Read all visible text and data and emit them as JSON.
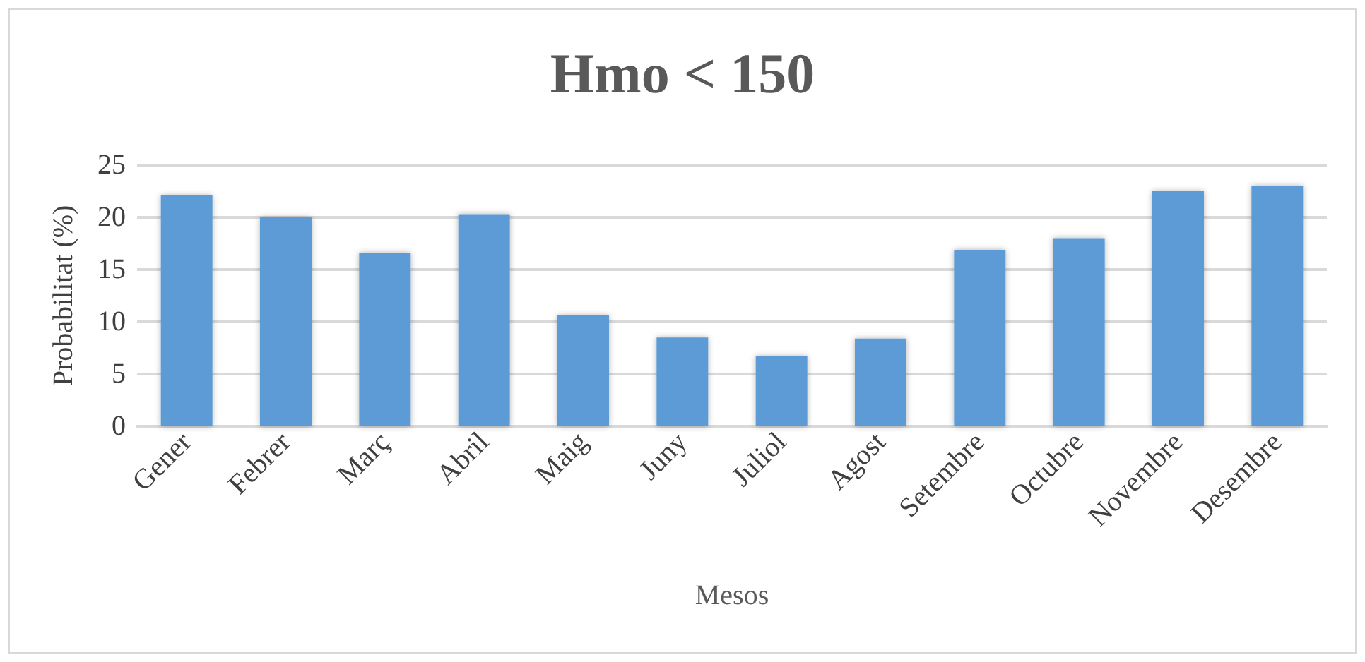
{
  "chart_data": {
    "type": "bar",
    "title": "Hmo < 150",
    "xlabel": "Mesos",
    "ylabel": "Probabilitat (%)",
    "categories": [
      "Gener",
      "Febrer",
      "Març",
      "Abril",
      "Maig",
      "Juny",
      "Juliol",
      "Agost",
      "Setembre",
      "Octubre",
      "Novembre",
      "Desembre"
    ],
    "values": [
      22.1,
      20,
      16.6,
      20.3,
      10.6,
      8.5,
      6.7,
      8.4,
      16.9,
      18,
      22.5,
      23
    ],
    "color": "#5b9bd5",
    "ylim": [
      0,
      25
    ],
    "yticks": [
      0,
      5,
      10,
      15,
      20,
      25
    ],
    "grid": "y"
  }
}
